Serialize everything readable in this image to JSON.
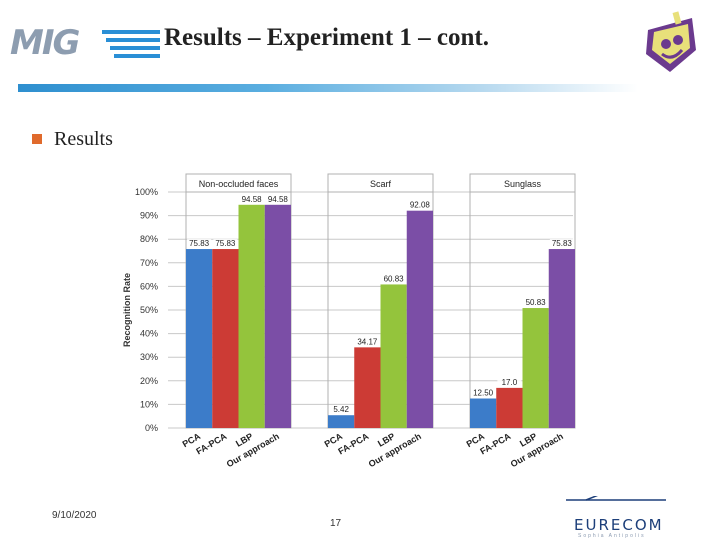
{
  "header": {
    "logo_text": "MIG",
    "title": "Results – Experiment 1 – cont."
  },
  "bullet": {
    "text": "Results"
  },
  "footer": {
    "date": "9/10/2020",
    "page": "17",
    "brand": "EURECOM",
    "brand_sub": "Sophia Antipolis"
  },
  "colors": {
    "title_rule": "#2e8fcf",
    "bullet": "#e06a2c",
    "pca": "#3c7cc9",
    "fa_pca": "#cc3b35",
    "lbp": "#94c43c",
    "ours": "#7b4ea6"
  },
  "chart_data": {
    "type": "bar",
    "ylabel": "Recognition Rate",
    "ylim": [
      0,
      100
    ],
    "y_ticks": [
      "0%",
      "10%",
      "20%",
      "30%",
      "40%",
      "50%",
      "60%",
      "70%",
      "80%",
      "90%",
      "100%"
    ],
    "grid": true,
    "categories": [
      "PCA",
      "FA-PCA",
      "LBP",
      "Our approach"
    ],
    "panels": [
      {
        "name": "Non-occluded faces",
        "values": [
          75.83,
          75.83,
          94.58,
          94.58
        ],
        "labels": [
          "75.83",
          "75.83",
          "94.58",
          "94.58"
        ]
      },
      {
        "name": "Scarf",
        "values": [
          5.42,
          34.17,
          60.83,
          92.08
        ],
        "labels": [
          "5.42",
          "34.17",
          "60.83",
          "92.08"
        ]
      },
      {
        "name": "Sunglass",
        "values": [
          12.5,
          17.0,
          50.83,
          75.83
        ],
        "labels": [
          "12.50",
          "17.0",
          "50.83",
          "75.83"
        ]
      }
    ]
  }
}
